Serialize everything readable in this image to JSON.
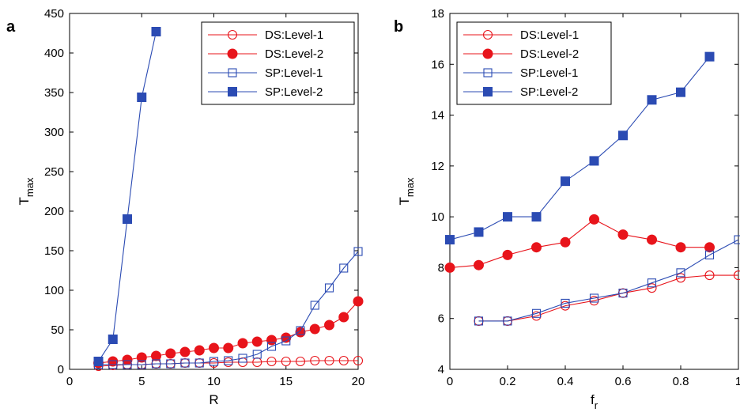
{
  "chart_data": [
    {
      "panel_label": "a",
      "type": "line",
      "xlabel": "R",
      "ylabel_main": "T",
      "ylabel_sub": "max",
      "xlim": [
        0,
        20
      ],
      "ylim": [
        0,
        450
      ],
      "xticks": [
        0,
        5,
        10,
        15,
        20
      ],
      "yticks": [
        0,
        50,
        100,
        150,
        200,
        250,
        300,
        350,
        400,
        450
      ],
      "legend_position": "top-right",
      "series": [
        {
          "name": "DS:Level-1",
          "color": "#e8141b",
          "marker": "circle",
          "filled": false,
          "x": [
            2,
            3,
            4,
            5,
            6,
            7,
            8,
            9,
            10,
            11,
            12,
            13,
            14,
            15,
            16,
            17,
            18,
            19,
            20
          ],
          "y": [
            4,
            5,
            6,
            6,
            7,
            7,
            8,
            8,
            8,
            9,
            9,
            9,
            10,
            10,
            10,
            11,
            11,
            11,
            11
          ]
        },
        {
          "name": "DS:Level-2",
          "color": "#e8141b",
          "marker": "circle",
          "filled": true,
          "x": [
            2,
            3,
            4,
            5,
            6,
            7,
            8,
            9,
            10,
            11,
            12,
            13,
            14,
            15,
            16,
            17,
            18,
            19,
            20
          ],
          "y": [
            8,
            10,
            12,
            15,
            17,
            20,
            22,
            24,
            27,
            27,
            33,
            35,
            37,
            40,
            47,
            51,
            56,
            66,
            86
          ]
        },
        {
          "name": "SP:Level-1",
          "color": "#2b4bb3",
          "marker": "square",
          "filled": false,
          "x": [
            2,
            3,
            4,
            5,
            6,
            7,
            8,
            9,
            10,
            11,
            12,
            13,
            14,
            15,
            16,
            17,
            18,
            19,
            20
          ],
          "y": [
            6,
            6,
            6,
            6,
            7,
            7,
            8,
            8,
            10,
            11,
            14,
            19,
            29,
            36,
            49,
            81,
            103,
            128,
            149
          ]
        },
        {
          "name": "SP:Level-2",
          "color": "#2b4bb3",
          "marker": "square",
          "filled": true,
          "x": [
            2,
            3,
            4,
            5,
            6
          ],
          "y": [
            10,
            38,
            190,
            344,
            427
          ]
        }
      ]
    },
    {
      "panel_label": "b",
      "type": "line",
      "xlabel_main": "f",
      "xlabel_sub": "r",
      "ylabel_main": "T",
      "ylabel_sub": "max",
      "xlim": [
        0,
        1
      ],
      "ylim": [
        4,
        18
      ],
      "xticks": [
        0,
        0.2,
        0.4,
        0.6,
        0.8,
        1
      ],
      "yticks": [
        4,
        6,
        8,
        10,
        12,
        14,
        16,
        18
      ],
      "legend_position": "top-left",
      "series": [
        {
          "name": "DS:Level-1",
          "color": "#e8141b",
          "marker": "circle",
          "filled": false,
          "x": [
            0.1,
            0.2,
            0.3,
            0.4,
            0.5,
            0.6,
            0.7,
            0.8,
            0.9,
            1.0
          ],
          "y": [
            5.9,
            5.9,
            6.1,
            6.5,
            6.7,
            7.0,
            7.2,
            7.6,
            7.7,
            7.7
          ]
        },
        {
          "name": "DS:Level-2",
          "color": "#e8141b",
          "marker": "circle",
          "filled": true,
          "x": [
            0,
            0.1,
            0.2,
            0.3,
            0.4,
            0.5,
            0.6,
            0.7,
            0.8,
            0.9
          ],
          "y": [
            8.0,
            8.1,
            8.5,
            8.8,
            9.0,
            9.9,
            9.3,
            9.1,
            8.8,
            8.8
          ]
        },
        {
          "name": "SP:Level-1",
          "color": "#2b4bb3",
          "marker": "square",
          "filled": false,
          "x": [
            0.1,
            0.2,
            0.3,
            0.4,
            0.5,
            0.6,
            0.7,
            0.8,
            0.9,
            1.0
          ],
          "y": [
            5.9,
            5.9,
            6.2,
            6.6,
            6.8,
            7.0,
            7.4,
            7.8,
            8.5,
            9.1
          ]
        },
        {
          "name": "SP:Level-2",
          "color": "#2b4bb3",
          "marker": "square",
          "filled": true,
          "x": [
            0,
            0.1,
            0.2,
            0.3,
            0.4,
            0.5,
            0.6,
            0.7,
            0.8,
            0.9
          ],
          "y": [
            9.1,
            9.4,
            10.0,
            10.0,
            11.4,
            12.2,
            13.2,
            14.6,
            14.9,
            16.3
          ]
        }
      ]
    }
  ]
}
